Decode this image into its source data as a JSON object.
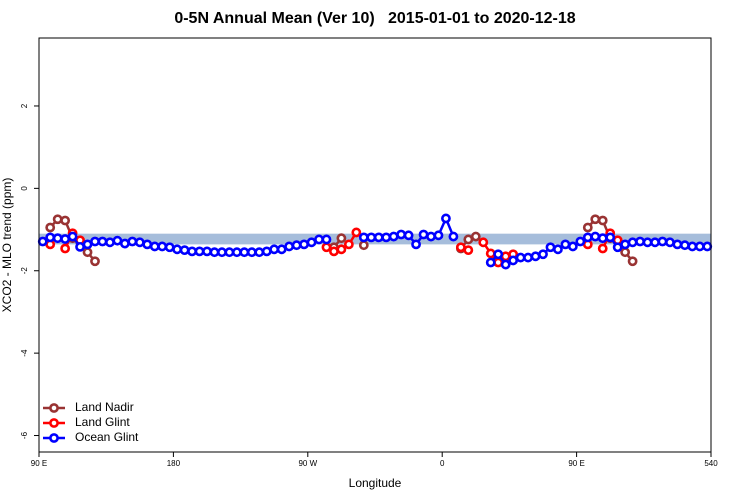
{
  "chart_data": {
    "type": "line",
    "title": "0-5N Annual Mean (Ver 10)   2015-01-01 to 2020-12-18",
    "xlabel": "Longitude",
    "ylabel": "XCO2 - MLO trend (ppm)",
    "xlim": [
      90,
      540
    ],
    "xticks": [
      {
        "value": 90,
        "label": "90 E"
      },
      180,
      {
        "value": 270,
        "label": "90 W"
      },
      {
        "value": 360,
        "label": "0"
      },
      {
        "value": 450,
        "label": "90 E"
      },
      540
    ],
    "ylim": [
      -6.4,
      3.65
    ],
    "yticks": [
      -6,
      -4,
      -2,
      0,
      2
    ],
    "band": {
      "ylim": [
        -1.36,
        -1.1
      ],
      "color": "#a6bddb"
    },
    "legend": "bottomleft",
    "series": [
      {
        "name": "Land Nadir",
        "color": "#993333",
        "x": [
          97.5,
          102.5,
          107.5,
          112.5,
          117.5,
          122.5,
          127.5,
          null,
          287.5,
          292.5,
          null,
          307.5,
          null,
          372.5,
          377.5,
          382.5,
          null,
          457.5,
          462.5,
          467.5,
          472.5,
          477.5,
          482.5,
          487.5
        ],
        "values": [
          -0.95,
          -0.75,
          -0.78,
          -1.21,
          -1.29,
          -1.55,
          -1.77,
          null,
          -1.43,
          -1.21,
          null,
          -1.38,
          null,
          -1.46,
          -1.24,
          -1.17,
          null,
          -0.95,
          -0.75,
          -0.78,
          -1.21,
          -1.29,
          -1.55,
          -1.77
        ]
      },
      {
        "name": "Land Glint",
        "color": "#ff0000",
        "x": [
          97.5,
          null,
          107.5,
          112.5,
          117.5,
          null,
          282.5,
          287.5,
          292.5,
          297.5,
          302.5,
          null,
          372.5,
          377.5,
          null,
          387.5,
          392.5,
          397.5,
          402.5,
          407.5,
          null,
          457.5,
          null,
          467.5,
          472.5,
          477.5
        ],
        "values": [
          -1.36,
          null,
          -1.46,
          -1.09,
          -1.26,
          null,
          -1.43,
          -1.53,
          -1.48,
          -1.36,
          -1.07,
          null,
          -1.43,
          -1.5,
          null,
          -1.31,
          -1.58,
          -1.8,
          -1.65,
          -1.6,
          null,
          -1.36,
          null,
          -1.46,
          -1.09,
          -1.26
        ]
      },
      {
        "name": "Ocean Glint",
        "color": "#0000ff",
        "x": [
          92.5,
          97.5,
          102.5,
          107.5,
          112.5,
          117.5,
          122.5,
          127.5,
          132.5,
          137.5,
          142.5,
          147.5,
          152.5,
          157.5,
          162.5,
          167.5,
          172.5,
          177.5,
          182.5,
          187.5,
          192.5,
          197.5,
          202.5,
          207.5,
          212.5,
          217.5,
          222.5,
          227.5,
          232.5,
          237.5,
          242.5,
          247.5,
          252.5,
          257.5,
          262.5,
          267.5,
          272.5,
          277.5,
          282.5,
          null,
          307.5,
          312.5,
          317.5,
          322.5,
          327.5,
          332.5,
          337.5,
          342.5,
          347.5,
          352.5,
          357.5,
          362.5,
          367.5,
          null,
          392.5,
          397.5,
          402.5,
          407.5,
          412.5,
          417.5,
          422.5,
          427.5,
          432.5,
          437.5,
          442.5,
          447.5,
          452.5,
          457.5,
          462.5,
          467.5,
          472.5,
          477.5,
          482.5,
          487.5,
          492.5,
          497.5,
          502.5,
          507.5,
          512.5,
          517.5,
          522.5,
          527.5,
          532.5,
          537.5
        ],
        "values": [
          -1.29,
          -1.19,
          -1.21,
          -1.23,
          -1.17,
          -1.42,
          -1.36,
          -1.29,
          -1.29,
          -1.31,
          -1.27,
          -1.34,
          -1.29,
          -1.31,
          -1.36,
          -1.41,
          -1.41,
          -1.43,
          -1.48,
          -1.5,
          -1.53,
          -1.53,
          -1.53,
          -1.55,
          -1.55,
          -1.55,
          -1.55,
          -1.55,
          -1.55,
          -1.55,
          -1.53,
          -1.48,
          -1.48,
          -1.41,
          -1.38,
          -1.36,
          -1.31,
          -1.24,
          -1.24,
          null,
          -1.19,
          -1.19,
          -1.19,
          -1.19,
          -1.17,
          -1.12,
          -1.14,
          -1.36,
          -1.12,
          -1.17,
          -1.14,
          -0.73,
          -1.17,
          null,
          -1.8,
          -1.6,
          -1.85,
          -1.75,
          -1.68,
          -1.68,
          -1.65,
          -1.6,
          -1.43,
          -1.48,
          -1.36,
          -1.41,
          -1.29,
          -1.19,
          -1.17,
          -1.21,
          -1.19,
          -1.43,
          -1.36,
          -1.31,
          -1.29,
          -1.31,
          -1.31,
          -1.29,
          -1.31,
          -1.36,
          -1.38,
          -1.41,
          -1.41,
          -1.41
        ]
      }
    ]
  }
}
